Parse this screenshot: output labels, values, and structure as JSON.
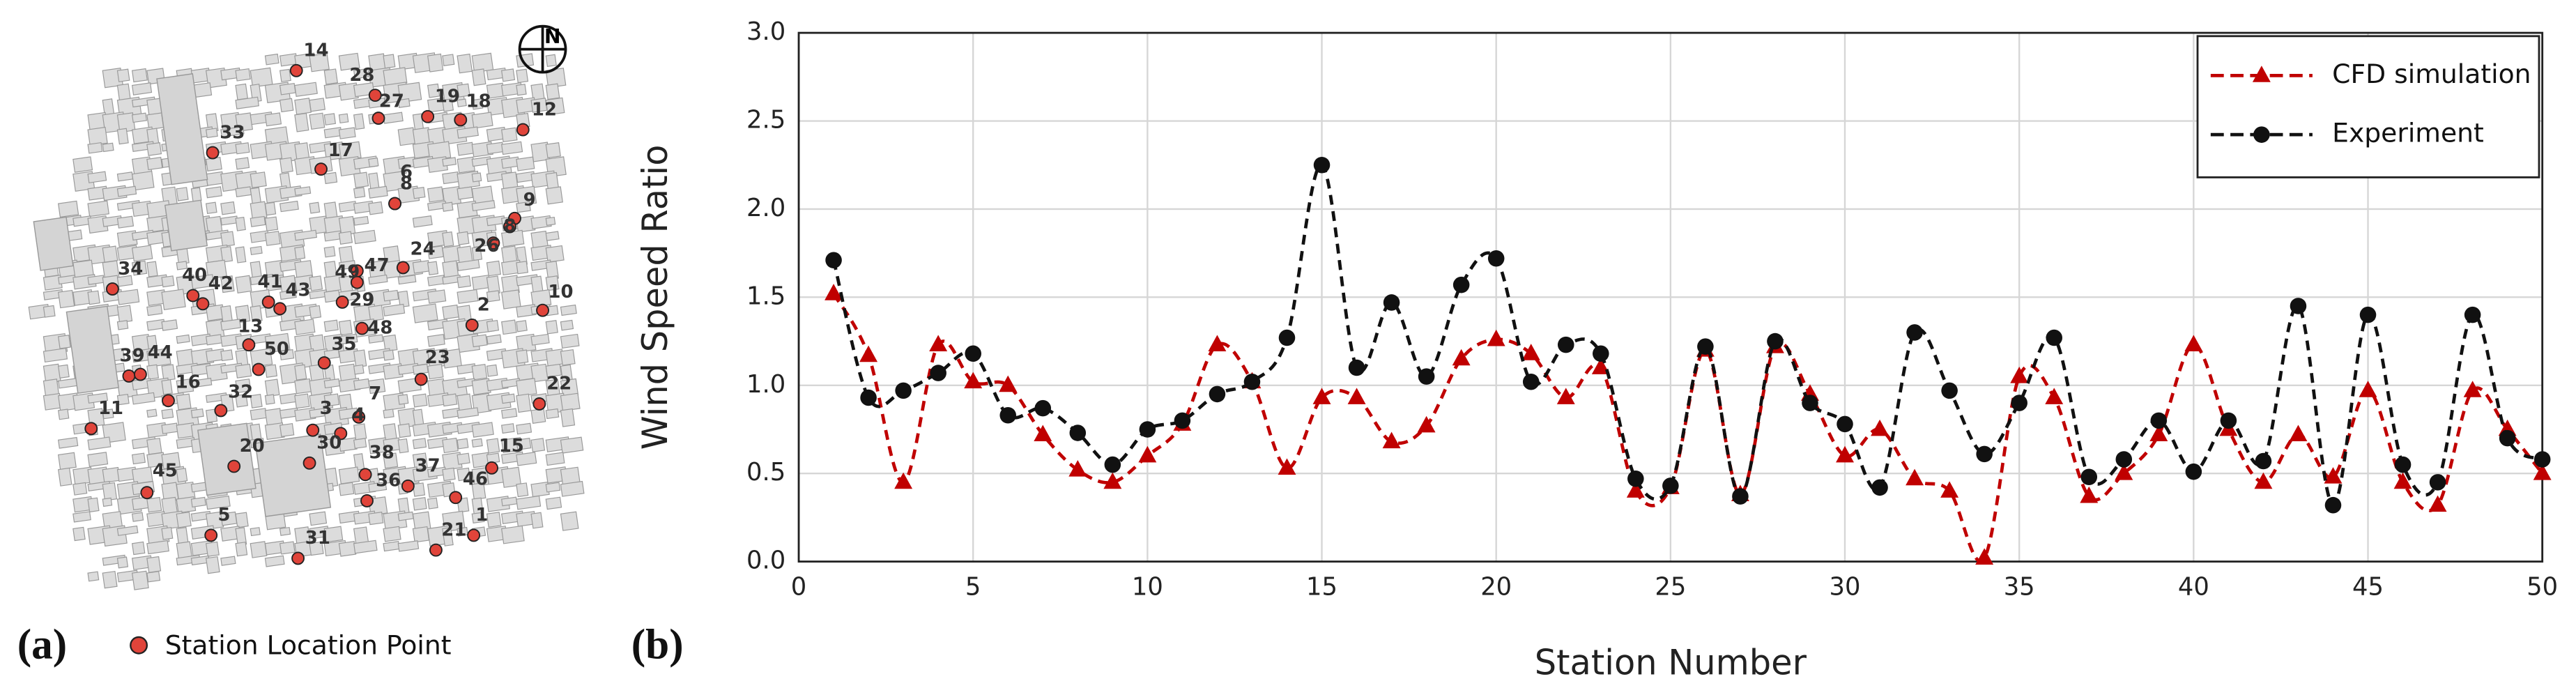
{
  "map": {
    "compass": "N",
    "stations": [
      "14",
      "28",
      "27",
      "19",
      "18",
      "12",
      "33",
      "17",
      "6",
      "8",
      "9",
      "8",
      "26",
      "24",
      "47",
      "49",
      "29",
      "34",
      "40",
      "42",
      "41",
      "43",
      "10",
      "2",
      "48",
      "13",
      "50",
      "35",
      "23",
      "39",
      "44",
      "16",
      "32",
      "22",
      "11",
      "7",
      "3",
      "4",
      "30",
      "20",
      "38",
      "15",
      "37",
      "46",
      "36",
      "45",
      "5",
      "1",
      "21",
      "31"
    ],
    "legend": "Station Location Point",
    "panel_label": "(a)"
  },
  "chart_data": {
    "type": "line",
    "panel_label": "(b)",
    "x_label": "Station Number",
    "y_label": "Wind Speed Ratio",
    "x": [
      1,
      2,
      3,
      4,
      5,
      6,
      7,
      8,
      9,
      10,
      11,
      12,
      13,
      14,
      15,
      16,
      17,
      18,
      19,
      20,
      21,
      22,
      23,
      24,
      25,
      26,
      27,
      28,
      29,
      30,
      31,
      32,
      33,
      34,
      35,
      36,
      37,
      38,
      39,
      40,
      41,
      42,
      43,
      44,
      45,
      46,
      47,
      48,
      49,
      50
    ],
    "series": [
      {
        "name": "CFD simulation",
        "color": "#c00000",
        "marker": "triangle",
        "values": [
          1.52,
          1.17,
          0.45,
          1.23,
          1.02,
          1.0,
          0.72,
          0.52,
          0.45,
          0.6,
          0.78,
          1.23,
          1.02,
          0.53,
          0.93,
          0.93,
          0.68,
          0.77,
          1.15,
          1.26,
          1.18,
          0.93,
          1.1,
          0.4,
          0.42,
          1.2,
          0.38,
          1.22,
          0.95,
          0.6,
          0.75,
          0.47,
          0.4,
          0.02,
          1.05,
          0.93,
          0.37,
          0.5,
          0.72,
          1.23,
          0.75,
          0.45,
          0.72,
          0.48,
          0.97,
          0.45,
          0.32,
          0.97,
          0.75,
          0.5
        ]
      },
      {
        "name": "Experiment",
        "color": "#111111",
        "marker": "circle",
        "values": [
          1.71,
          0.93,
          0.97,
          1.07,
          1.18,
          0.83,
          0.87,
          0.73,
          0.55,
          0.75,
          0.8,
          0.95,
          1.02,
          1.27,
          2.25,
          1.1,
          1.47,
          1.05,
          1.57,
          1.72,
          1.02,
          1.23,
          1.18,
          0.47,
          0.43,
          1.22,
          0.37,
          1.25,
          0.9,
          0.78,
          0.42,
          1.3,
          0.97,
          0.61,
          0.9,
          1.27,
          0.48,
          0.58,
          0.8,
          0.51,
          0.8,
          0.57,
          1.45,
          0.32,
          1.4,
          0.55,
          0.45,
          1.4,
          0.7,
          0.58
        ]
      }
    ],
    "xlim": [
      0,
      50
    ],
    "ylim": [
      0,
      3
    ],
    "xticks": [
      0,
      5,
      10,
      15,
      20,
      25,
      30,
      35,
      40,
      45,
      50
    ],
    "yticks": [
      {
        "value": 0,
        "label": "0.0"
      },
      0.5,
      {
        "value": 1,
        "label": "1.0"
      },
      1.5,
      {
        "value": 2,
        "label": "2.0"
      },
      2.5,
      {
        "value": 3,
        "label": "3.0"
      }
    ],
    "grid": true,
    "legend": "upper right"
  }
}
